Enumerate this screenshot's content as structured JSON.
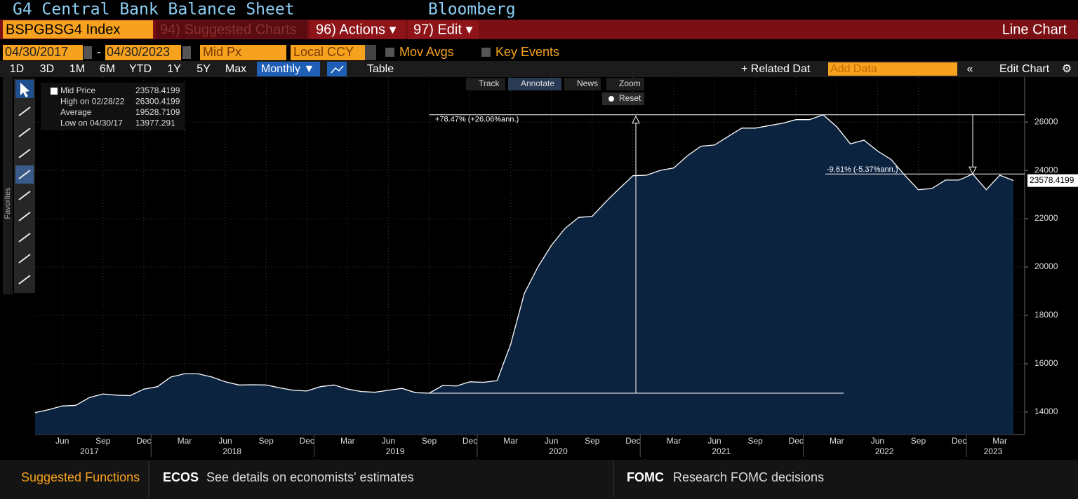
{
  "header": {
    "title": "G4 Central Bank Balance Sheet",
    "source": "Bloomberg"
  },
  "toolbar": {
    "ticker": "BSPGBSG4 Index",
    "suggested": "94) Suggested Charts",
    "actions": "96) Actions ▾",
    "edit": "97) Edit ▾",
    "chart_kind": "Line Chart"
  },
  "controls": {
    "start": "04/30/2017",
    "separator": "-",
    "end": "04/30/2023",
    "price": "Mid Px",
    "currency": "Local CCY",
    "mov_avgs": "Mov Avgs",
    "key_events": "Key Events"
  },
  "periods": [
    "1D",
    "3D",
    "1M",
    "6M",
    "YTD",
    "1Y",
    "5Y",
    "Max"
  ],
  "frequency": "Monthly ▼",
  "table": "Table",
  "related": "+ Related Dat",
  "add_data": "Add Data",
  "edit_chart": "Edit Chart",
  "chart_tools": [
    "Track",
    "Annotate",
    "News",
    "Zoom"
  ],
  "reset": "Reset",
  "favorites": "Favorites",
  "chart_data": {
    "type": "line",
    "color": "#ffffff",
    "fill": "#0c2340",
    "grid": true,
    "legend": [
      {
        "label": "Mid Price",
        "value": 23578.4199
      },
      {
        "label": "High on 02/28/22",
        "value": 26300.4199
      },
      {
        "label": "Average",
        "value": 19528.7109
      },
      {
        "label": "Low on 04/30/17",
        "value": 13977.291
      }
    ],
    "annotations": [
      {
        "label": "+78.47% (+26.06%ann.)"
      },
      {
        "label": "-9.61% (-5.37%ann.)"
      }
    ],
    "categories": [
      null,
      null,
      "Jun",
      null,
      null,
      "Sep",
      null,
      null,
      "Dec",
      null,
      null,
      "Mar",
      null,
      null,
      "Jun",
      null,
      null,
      "Sep",
      null,
      null,
      "Dec",
      null,
      null,
      "Mar",
      null,
      null,
      "Jun",
      null,
      null,
      "Sep",
      null,
      null,
      "Dec",
      null,
      null,
      "Mar",
      null,
      null,
      "Jun",
      null,
      null,
      "Sep",
      null,
      null,
      "Dec",
      null,
      null,
      "Mar",
      null,
      null,
      "Jun",
      null,
      null,
      "Sep",
      null,
      null,
      "Dec",
      null,
      null,
      "Mar",
      null,
      null,
      "Jun",
      null,
      null,
      "Sep",
      null,
      null,
      "Dec",
      null,
      null,
      "Mar",
      null
    ],
    "years": [
      "2017",
      "2018",
      "2019",
      "2020",
      "2021",
      "2022",
      "2023"
    ],
    "values": [
      13977.291,
      14100,
      14250,
      14280,
      14600,
      14750,
      14700,
      14680,
      14950,
      15050,
      15450,
      15580,
      15580,
      15450,
      15250,
      15120,
      15130,
      15120,
      15000,
      14900,
      14870,
      15050,
      15120,
      14950,
      14850,
      14820,
      14900,
      14980,
      14800,
      14780,
      15100,
      15080,
      15250,
      15230,
      15300,
      16800,
      18900,
      20000,
      20900,
      21600,
      22050,
      22100,
      22700,
      23250,
      23780,
      23800,
      24000,
      24100,
      24600,
      25000,
      25050,
      25400,
      25750,
      25750,
      25850,
      25950,
      26100,
      26100,
      26300.4199,
      25800,
      25100,
      25250,
      24800,
      24450,
      23800,
      23200,
      23250,
      23600,
      23600,
      23850,
      23200,
      23800,
      23578.4199
    ],
    "ylim": [
      13070,
      27860
    ],
    "yticks": [
      14000,
      16000,
      18000,
      20000,
      22000,
      24000,
      26000
    ]
  },
  "footer": {
    "suggested": "Suggested Functions",
    "items": [
      {
        "code": "ECOS",
        "text": "See details on economists' estimates"
      },
      {
        "code": "FOMC",
        "text": "Research FOMC decisions"
      }
    ]
  }
}
